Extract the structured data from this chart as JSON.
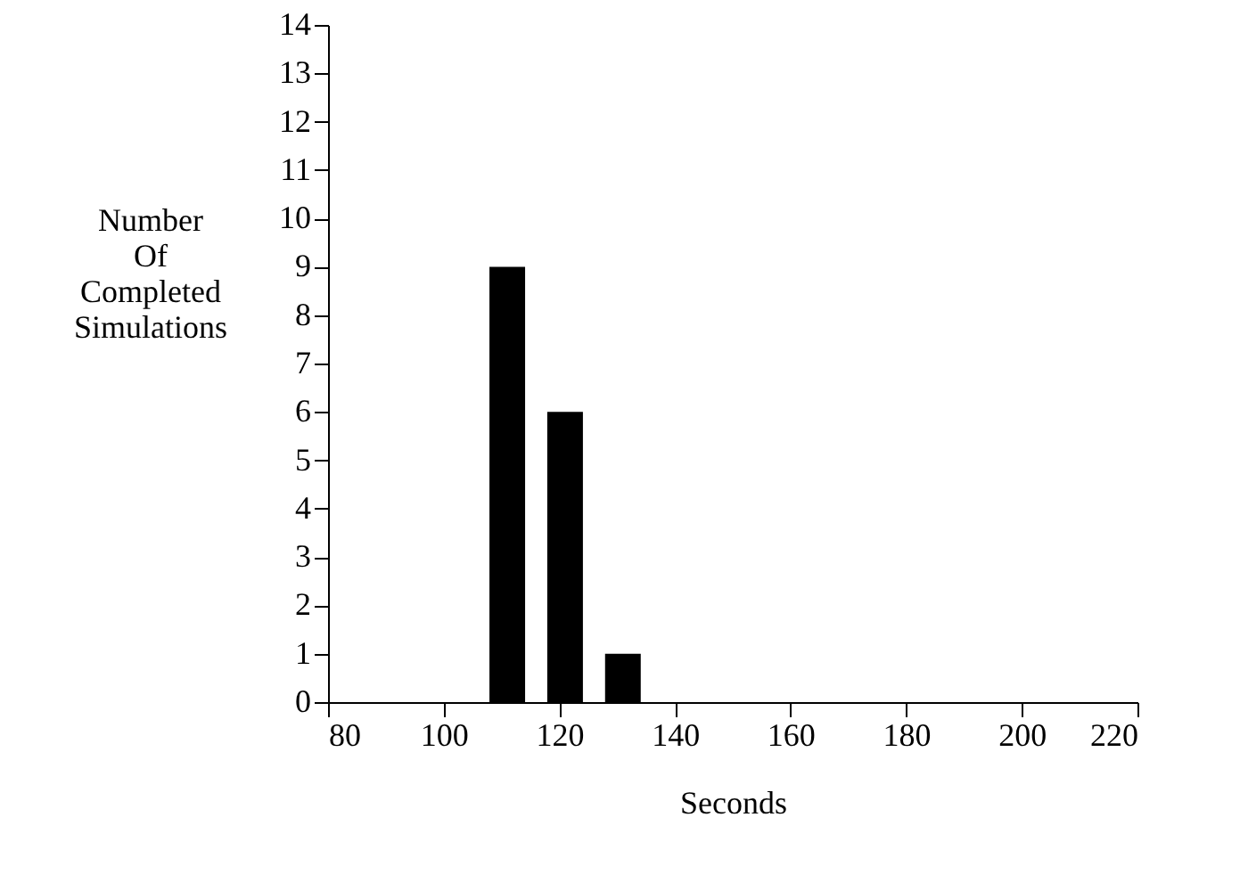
{
  "chart_data": {
    "type": "bar",
    "xlabel": "Seconds",
    "ylabel": "Number\nOf\nCompleted\nSimulations",
    "x": [
      111,
      121,
      131
    ],
    "values": [
      9,
      6,
      1
    ],
    "color": "#000000",
    "xlim": [
      80,
      220
    ],
    "xticks": [
      80,
      100,
      120,
      140,
      160,
      180,
      200,
      220
    ],
    "ylim": [
      0,
      14
    ],
    "yticks": [
      0,
      1,
      2,
      3,
      4,
      5,
      6,
      7,
      8,
      9,
      10,
      11,
      12,
      13,
      14
    ],
    "grid": false
  }
}
